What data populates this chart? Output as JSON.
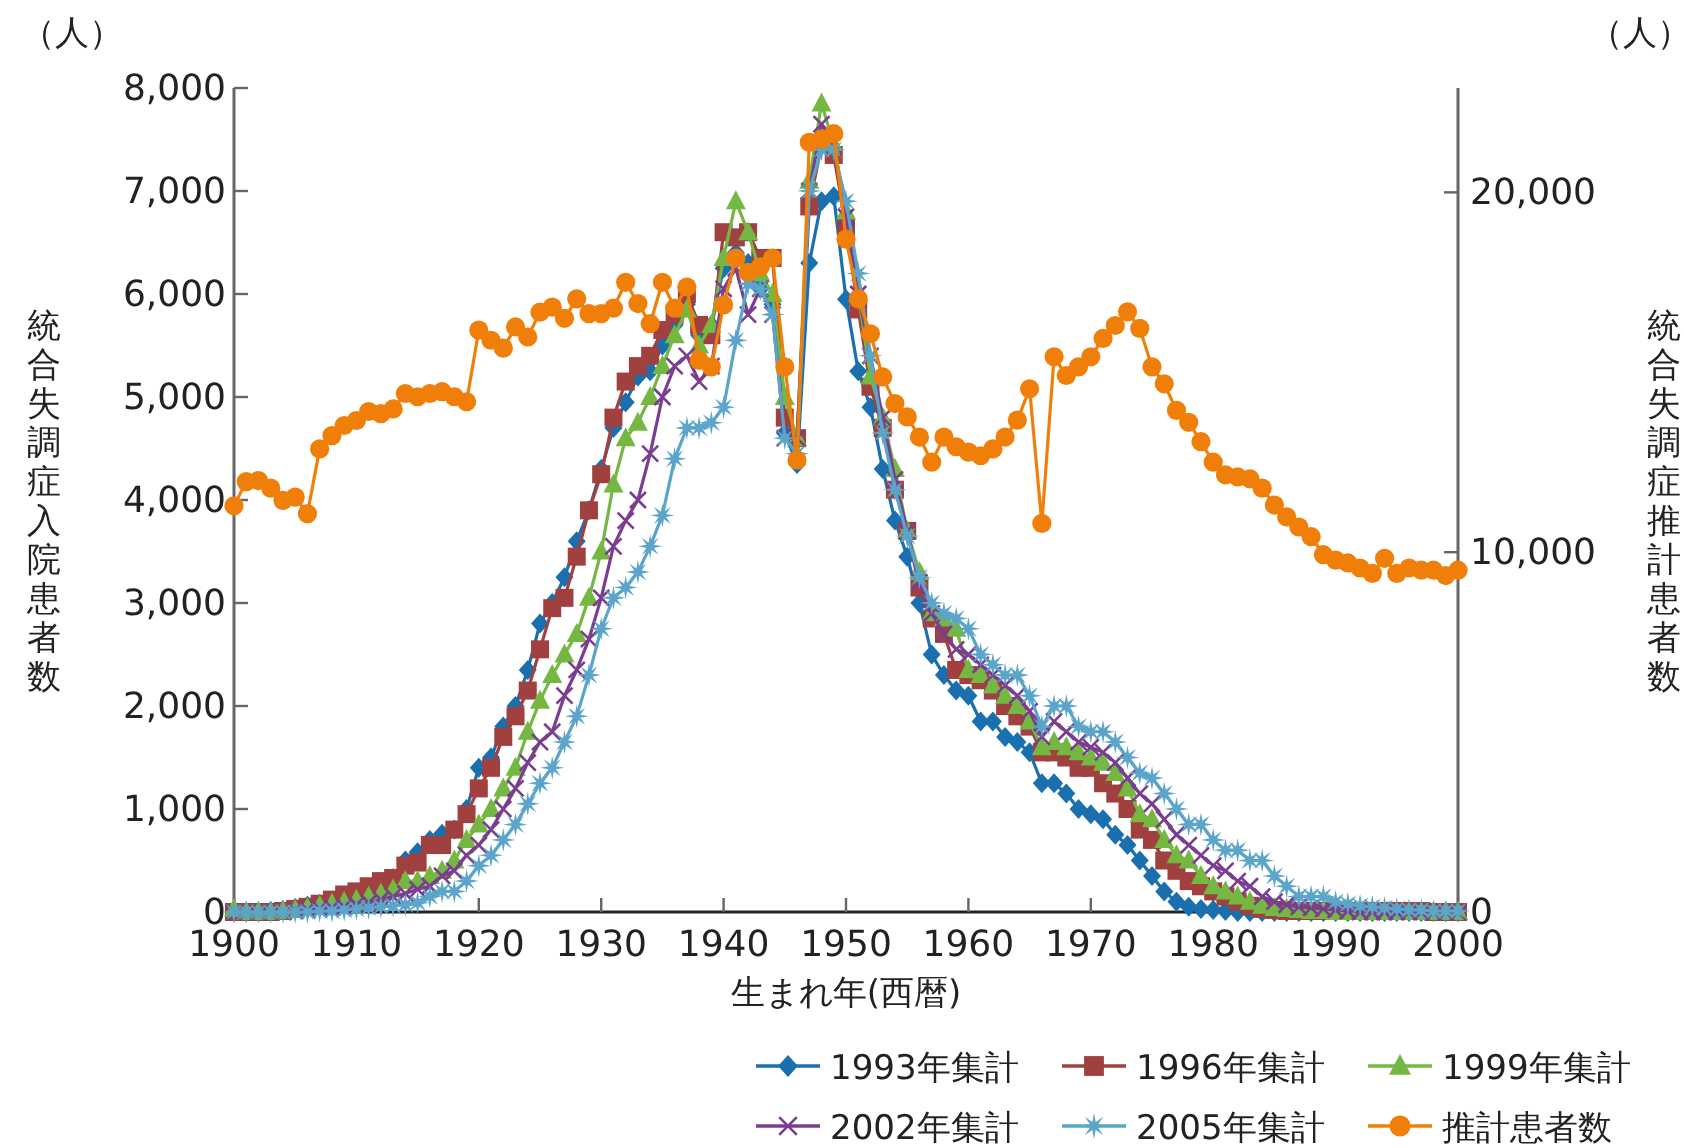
{
  "chart_data": {
    "type": "line",
    "xlabel": "生まれ年(西暦)",
    "ylabel": "統合失調症入院患者数",
    "y2label": "統合失調症推計患者数",
    "annotations": [
      "（人）",
      "（人）"
    ],
    "x": [
      1900,
      1901,
      1902,
      1903,
      1904,
      1905,
      1906,
      1907,
      1908,
      1909,
      1910,
      1911,
      1912,
      1913,
      1914,
      1915,
      1916,
      1917,
      1918,
      1919,
      1920,
      1921,
      1922,
      1923,
      1924,
      1925,
      1926,
      1927,
      1928,
      1929,
      1930,
      1931,
      1932,
      1933,
      1934,
      1935,
      1936,
      1937,
      1938,
      1939,
      1940,
      1941,
      1942,
      1943,
      1944,
      1945,
      1946,
      1947,
      1948,
      1949,
      1950,
      1951,
      1952,
      1953,
      1954,
      1955,
      1956,
      1957,
      1958,
      1959,
      1960,
      1961,
      1962,
      1963,
      1964,
      1965,
      1966,
      1967,
      1968,
      1969,
      1970,
      1971,
      1972,
      1973,
      1974,
      1975,
      1976,
      1977,
      1978,
      1979,
      1980,
      1981,
      1982,
      1983,
      1984,
      1985,
      1986,
      1987,
      1988,
      1989,
      1990,
      1991,
      1992,
      1993,
      1994,
      1995,
      1996,
      1997,
      1998,
      1999,
      2000
    ],
    "xlim": [
      1900,
      2000
    ],
    "xticks": [
      1900,
      1910,
      1920,
      1930,
      1940,
      1950,
      1960,
      1970,
      1980,
      1990,
      2000
    ],
    "ylim": [
      0,
      8000
    ],
    "yticks": [
      0,
      {
        "value": 1000,
        "label": "1,000"
      },
      {
        "value": 2000,
        "label": "2,000"
      },
      {
        "value": 3000,
        "label": "3,000"
      },
      {
        "value": 4000,
        "label": "4,000"
      },
      {
        "value": 5000,
        "label": "5,000"
      },
      {
        "value": 6000,
        "label": "6,000"
      },
      {
        "value": 7000,
        "label": "7,000"
      },
      {
        "value": 8000,
        "label": "8,000"
      }
    ],
    "y2lim": [
      0,
      22900
    ],
    "y2ticks": [
      0,
      {
        "value": 10000,
        "label": "10,000"
      },
      {
        "value": 20000,
        "label": "20,000"
      }
    ],
    "grid": false,
    "legend": "bottom right",
    "series": [
      {
        "name": "1993年集計",
        "color": "#1a6faf",
        "marker": "diamond",
        "values": [
          0,
          0,
          0,
          10,
          20,
          40,
          60,
          80,
          100,
          140,
          180,
          230,
          280,
          330,
          500,
          580,
          700,
          760,
          800,
          1000,
          1400,
          1500,
          1800,
          2000,
          2350,
          2800,
          3000,
          3250,
          3600,
          3900,
          4300,
          4700,
          4950,
          5200,
          5250,
          5500,
          5700,
          5900,
          5600,
          5700,
          6250,
          6400,
          6300,
          6050,
          5900,
          4650,
          4350,
          6300,
          6900,
          6950,
          5950,
          5250,
          4900,
          4300,
          3800,
          3450,
          3000,
          2500,
          2300,
          2150,
          2100,
          1850,
          1850,
          1700,
          1650,
          1550,
          1250,
          1250,
          1150,
          1000,
          950,
          900,
          750,
          650,
          500,
          350,
          200,
          100,
          50,
          30,
          20,
          10,
          0,
          0,
          0,
          0,
          0,
          0,
          0,
          0,
          0,
          0,
          0,
          0,
          0,
          0,
          0,
          0,
          0,
          0,
          0
        ]
      },
      {
        "name": "1996年集計",
        "color": "#a0403f",
        "marker": "square",
        "values": [
          0,
          0,
          0,
          0,
          10,
          30,
          50,
          80,
          120,
          170,
          200,
          250,
          300,
          330,
          450,
          480,
          650,
          650,
          800,
          950,
          1200,
          1400,
          1700,
          1900,
          2150,
          2550,
          2950,
          3050,
          3450,
          3900,
          4250,
          4800,
          5150,
          5300,
          5400,
          5650,
          5800,
          6000,
          5700,
          5600,
          6600,
          6550,
          6600,
          6350,
          6350,
          4800,
          4600,
          6850,
          7450,
          7350,
          6650,
          5850,
          5100,
          4700,
          4100,
          3700,
          3150,
          2850,
          2700,
          2350,
          2300,
          2250,
          2150,
          2000,
          1900,
          1800,
          1550,
          1550,
          1500,
          1400,
          1400,
          1250,
          1150,
          1000,
          800,
          700,
          500,
          400,
          300,
          250,
          200,
          150,
          100,
          60,
          30,
          20,
          10,
          10,
          10,
          10,
          10,
          10,
          10,
          10,
          10,
          10,
          10,
          10,
          0,
          0,
          0
        ]
      },
      {
        "name": "1999年集計",
        "color": "#74b843",
        "marker": "triangle",
        "values": [
          30,
          0,
          0,
          0,
          10,
          20,
          40,
          60,
          80,
          100,
          120,
          150,
          180,
          220,
          300,
          300,
          350,
          400,
          500,
          700,
          850,
          1000,
          1200,
          1400,
          1750,
          2050,
          2300,
          2500,
          2700,
          3050,
          3500,
          4150,
          4600,
          4750,
          5000,
          5300,
          5600,
          5850,
          5500,
          5700,
          6350,
          6900,
          6600,
          6200,
          6000,
          5000,
          4600,
          7100,
          7850,
          7450,
          6800,
          6000,
          5200,
          4800,
          4300,
          3700,
          3300,
          2900,
          2850,
          2750,
          2350,
          2300,
          2200,
          2100,
          2000,
          1850,
          1600,
          1650,
          1600,
          1550,
          1500,
          1450,
          1350,
          1200,
          950,
          900,
          700,
          550,
          500,
          350,
          250,
          200,
          150,
          100,
          60,
          40,
          30,
          20,
          10,
          10,
          0,
          0,
          0,
          0,
          0,
          0,
          0,
          0,
          0,
          0,
          0
        ]
      },
      {
        "name": "2002年集計",
        "color": "#7a3d8f",
        "marker": "cross",
        "values": [
          0,
          0,
          0,
          0,
          0,
          10,
          20,
          30,
          40,
          50,
          70,
          90,
          120,
          150,
          180,
          220,
          250,
          350,
          400,
          550,
          650,
          800,
          1000,
          1200,
          1450,
          1650,
          1750,
          2100,
          2350,
          2650,
          3050,
          3550,
          3800,
          4000,
          4450,
          5000,
          5300,
          5400,
          5150,
          5300,
          6050,
          6250,
          5800,
          6050,
          5800,
          4600,
          4600,
          7000,
          7650,
          7450,
          6750,
          6000,
          5400,
          4800,
          4200,
          3700,
          3200,
          2900,
          2700,
          2550,
          2500,
          2400,
          2300,
          2200,
          2100,
          1950,
          1700,
          1850,
          1750,
          1650,
          1600,
          1550,
          1450,
          1300,
          1150,
          1050,
          900,
          750,
          650,
          550,
          450,
          400,
          300,
          250,
          150,
          100,
          70,
          50,
          40,
          30,
          20,
          10,
          0,
          0,
          0,
          0,
          0,
          0,
          0,
          0,
          0
        ]
      },
      {
        "name": "2005年集計",
        "color": "#5aa5c9",
        "marker": "star",
        "values": [
          0,
          0,
          0,
          0,
          0,
          0,
          0,
          10,
          10,
          20,
          30,
          40,
          50,
          60,
          70,
          90,
          150,
          200,
          200,
          300,
          450,
          550,
          700,
          850,
          1050,
          1250,
          1400,
          1650,
          1900,
          2300,
          2750,
          3050,
          3150,
          3300,
          3550,
          3850,
          4400,
          4700,
          4700,
          4750,
          4900,
          5550,
          6100,
          6050,
          5800,
          4600,
          4450,
          7000,
          7400,
          7400,
          6900,
          6200,
          5400,
          4650,
          4100,
          3650,
          3250,
          3000,
          2900,
          2850,
          2750,
          2500,
          2400,
          2300,
          2300,
          2100,
          1800,
          2000,
          2000,
          1800,
          1750,
          1750,
          1650,
          1500,
          1350,
          1300,
          1150,
          1000,
          850,
          850,
          700,
          600,
          600,
          500,
          500,
          350,
          250,
          150,
          150,
          150,
          100,
          80,
          60,
          50,
          40,
          30,
          20,
          20,
          10,
          10,
          10
        ]
      },
      {
        "name": "推計患者数",
        "color": "#f07f09",
        "marker": "circle",
        "axis": "y2",
        "values": [
          11290,
          11960,
          11990,
          11780,
          11440,
          11530,
          11070,
          12870,
          13240,
          13520,
          13660,
          13910,
          13850,
          13980,
          14410,
          14320,
          14410,
          14460,
          14320,
          14180,
          16170,
          15890,
          15670,
          16260,
          15980,
          16670,
          16810,
          16500,
          17040,
          16630,
          16630,
          16780,
          17500,
          16910,
          16350,
          17500,
          16780,
          17370,
          15330,
          15150,
          16870,
          18170,
          17780,
          17930,
          18170,
          15150,
          12560,
          21390,
          21480,
          21630,
          18700,
          17040,
          16070,
          14870,
          14130,
          13760,
          13200,
          12500,
          13200,
          12930,
          12780,
          12680,
          12870,
          13200,
          13670,
          14540,
          10800,
          15430,
          14910,
          15150,
          15430,
          15940,
          16300,
          16680,
          16220,
          15150,
          14680,
          13940,
          13610,
          13070,
          12500,
          12150,
          12090,
          12040,
          11780,
          11310,
          10980,
          10700,
          10430,
          9930,
          9780,
          9700,
          9560,
          9410,
          9830,
          9410,
          9560,
          9500,
          9500,
          9350,
          9500
        ]
      }
    ]
  }
}
